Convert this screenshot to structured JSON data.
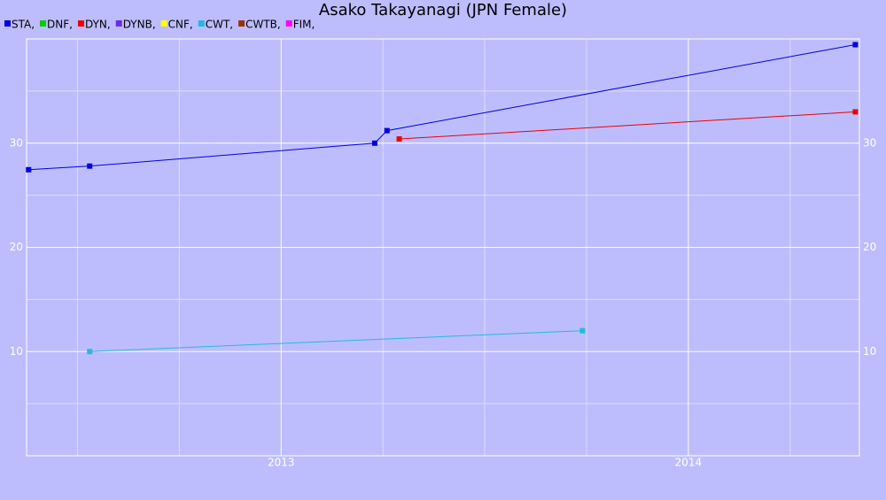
{
  "chart_data": {
    "type": "line",
    "title": "Asako Takayanagi (JPN Female)",
    "xlim": [
      2012.375,
      2014.42
    ],
    "xticks": [
      2013,
      2014
    ],
    "minor_xticks": [
      2012.5,
      2012.75,
      2013.25,
      2013.5,
      2013.75,
      2014.25
    ],
    "ylim": [
      0,
      40
    ],
    "yticks": [
      10,
      20,
      30
    ],
    "minor_yticks": [
      5,
      15,
      25,
      35
    ],
    "grid": true,
    "series": [
      {
        "name": "STA,",
        "color": "#0000dd",
        "x": [
          2012.38,
          2012.53,
          2013.23,
          2013.26,
          2014.41
        ],
        "values": [
          27.45,
          27.8,
          30.0,
          31.2,
          39.45
        ]
      },
      {
        "name": "DNF,",
        "color": "#00cc00",
        "x": [],
        "values": []
      },
      {
        "name": "DYN,",
        "color": "#ee0000",
        "x": [
          2013.29,
          2014.41
        ],
        "values": [
          30.4,
          33.0
        ]
      },
      {
        "name": "DYNB,",
        "color": "#6a2cf0",
        "x": [],
        "values": []
      },
      {
        "name": "CNF,",
        "color": "#ffff00",
        "x": [],
        "values": []
      },
      {
        "name": "CWT,",
        "color": "#22bbdd",
        "x": [
          2012.53,
          2013.74
        ],
        "values": [
          10.0,
          12.0
        ]
      },
      {
        "name": "CWTB,",
        "color": "#993300",
        "x": [],
        "values": []
      },
      {
        "name": "FIM,",
        "color": "#ff00ff",
        "x": [],
        "values": []
      }
    ]
  }
}
